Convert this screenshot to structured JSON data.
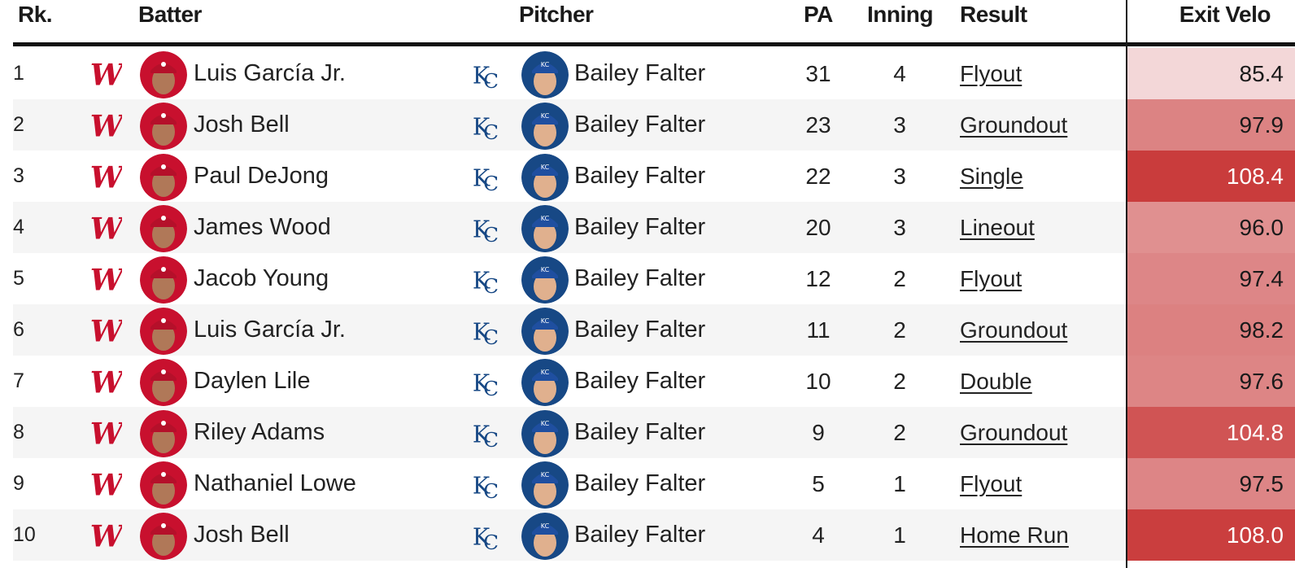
{
  "headers": {
    "rank": "Rk.",
    "batter": "Batter",
    "pitcher": "Pitcher",
    "pa": "PA",
    "inning": "Inning",
    "result": "Result",
    "exit_velo": "Exit Velo"
  },
  "icons": {
    "batter_team": "nationals-logo-icon",
    "pitcher_team": "royals-logo-icon"
  },
  "colors": {
    "nationals_red": "#c8102e",
    "royals_blue": "#174885",
    "ev_scale_low": "#f4dadb",
    "ev_scale_high": "#c93b3b"
  },
  "rows": [
    {
      "rank": "1",
      "batter": "Luis García Jr.",
      "pitcher": "Bailey Falter",
      "pa": "31",
      "inning": "4",
      "result": "Flyout",
      "exit_velo": "85.4"
    },
    {
      "rank": "2",
      "batter": "Josh Bell",
      "pitcher": "Bailey Falter",
      "pa": "23",
      "inning": "3",
      "result": "Groundout",
      "exit_velo": "97.9"
    },
    {
      "rank": "3",
      "batter": "Paul DeJong",
      "pitcher": "Bailey Falter",
      "pa": "22",
      "inning": "3",
      "result": "Single",
      "exit_velo": "108.4"
    },
    {
      "rank": "4",
      "batter": "James Wood",
      "pitcher": "Bailey Falter",
      "pa": "20",
      "inning": "3",
      "result": "Lineout",
      "exit_velo": "96.0"
    },
    {
      "rank": "5",
      "batter": "Jacob Young",
      "pitcher": "Bailey Falter",
      "pa": "12",
      "inning": "2",
      "result": "Flyout",
      "exit_velo": "97.4"
    },
    {
      "rank": "6",
      "batter": "Luis García Jr.",
      "pitcher": "Bailey Falter",
      "pa": "11",
      "inning": "2",
      "result": "Groundout",
      "exit_velo": "98.2"
    },
    {
      "rank": "7",
      "batter": "Daylen Lile",
      "pitcher": "Bailey Falter",
      "pa": "10",
      "inning": "2",
      "result": "Double",
      "exit_velo": "97.6"
    },
    {
      "rank": "8",
      "batter": "Riley Adams",
      "pitcher": "Bailey Falter",
      "pa": "9",
      "inning": "2",
      "result": "Groundout",
      "exit_velo": "104.8"
    },
    {
      "rank": "9",
      "batter": "Nathaniel Lowe",
      "pitcher": "Bailey Falter",
      "pa": "5",
      "inning": "1",
      "result": "Flyout",
      "exit_velo": "97.5"
    },
    {
      "rank": "10",
      "batter": "Josh Bell",
      "pitcher": "Bailey Falter",
      "pa": "4",
      "inning": "1",
      "result": "Home Run",
      "exit_velo": "108.0"
    }
  ]
}
